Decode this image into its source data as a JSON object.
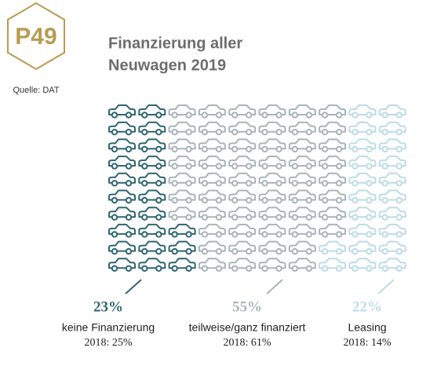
{
  "chart_data": {
    "type": "pictogram",
    "badge": "P49",
    "source": "Quelle: DAT",
    "title_lines": [
      "Finanzierung aller",
      "Neuwagen 2019"
    ],
    "categories": [
      "keine Finanzierung",
      "teilweise/ganz finanziert",
      "Leasing"
    ],
    "values": [
      23,
      55,
      22
    ],
    "value_labels": [
      "23%",
      "55%",
      "22%"
    ],
    "previous": [
      "2018: 25%",
      "2018: 61%",
      "2018: 14%"
    ],
    "colors": [
      "#2f6671",
      "#a9b4b9",
      "#bcdce7"
    ]
  }
}
